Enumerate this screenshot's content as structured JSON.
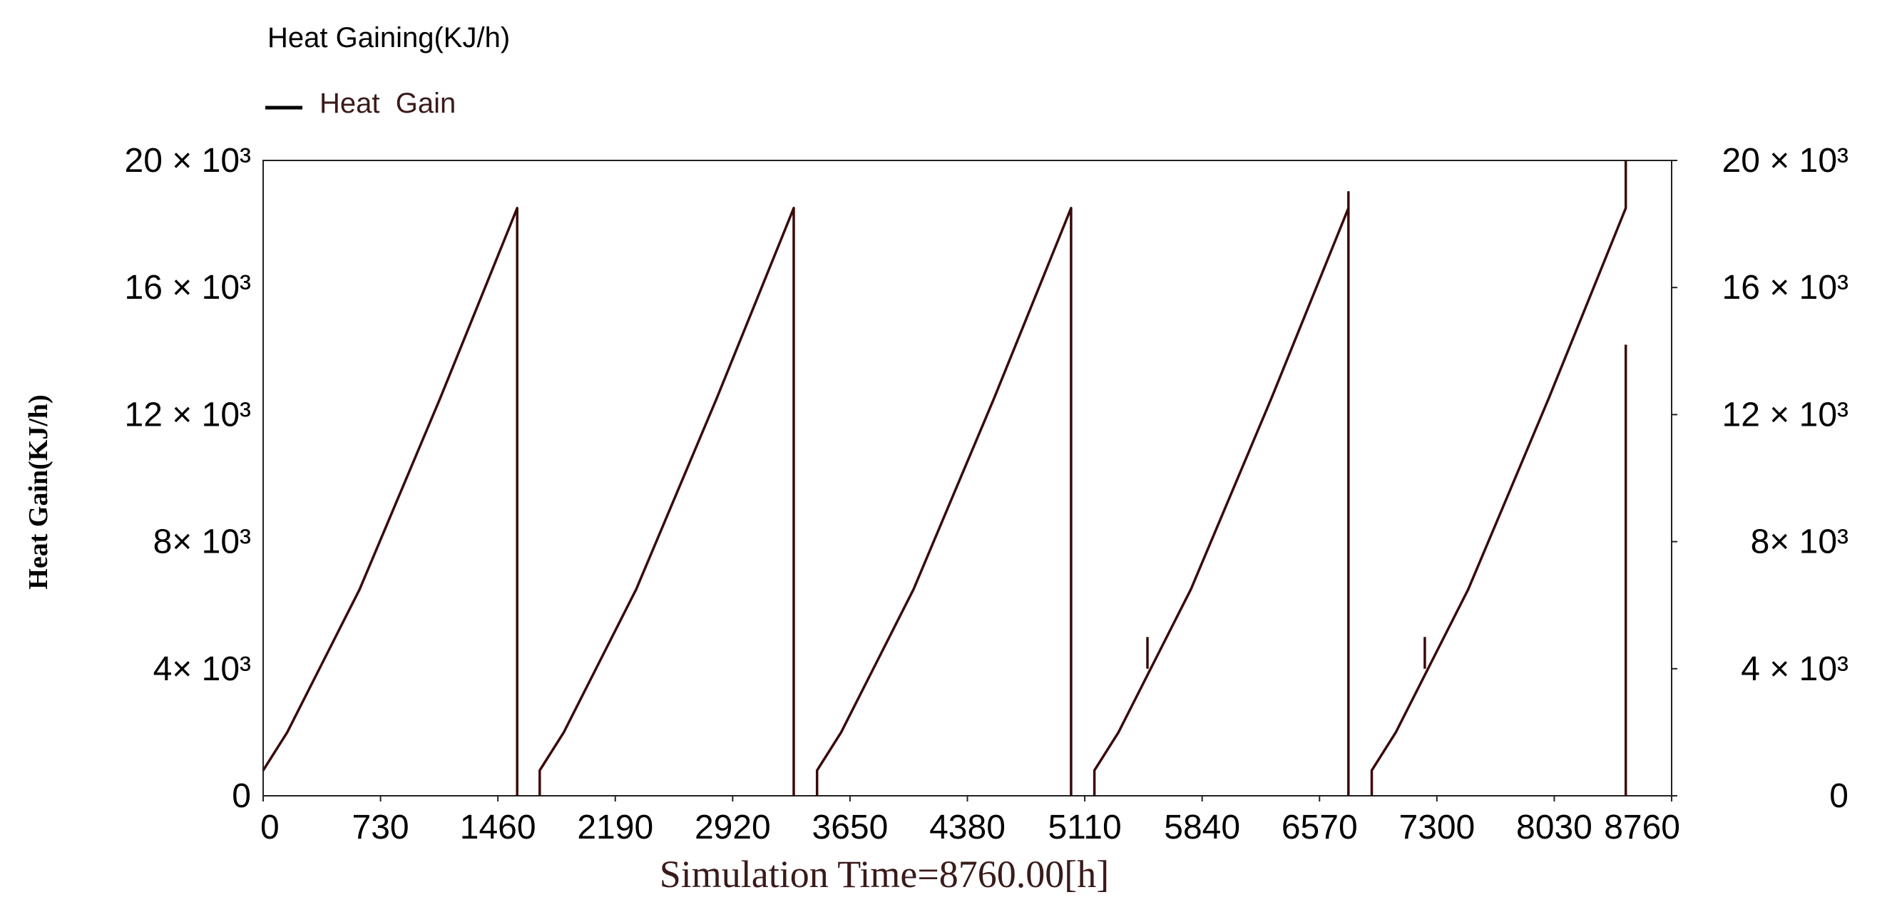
{
  "chart_data": {
    "type": "line",
    "title": "Heat Gaining(KJ/h)",
    "legend": [
      {
        "name": "Heat  Gain",
        "color": "#000000"
      }
    ],
    "xlabel": "Simulation Time=8760.00[h]",
    "ylabel": "Heat Gain(KJ/h)",
    "xlim": [
      0,
      8760
    ],
    "ylim": [
      0,
      20000
    ],
    "x_ticks": [
      "0",
      "730",
      "1460",
      "2190",
      "2920",
      "3650",
      "4380",
      "5110",
      "5840",
      "6570",
      "7300",
      "8030",
      "8760"
    ],
    "y_ticks_left": [
      "0",
      "4× 10³",
      "8× 10³",
      "12 × 10³",
      "16 × 10³",
      "20 × 10³"
    ],
    "y_ticks_right": [
      "0",
      "4 × 10³",
      "8× 10³",
      "12 × 10³",
      "16 × 10³",
      "20 × 10³"
    ],
    "y_tick_values": [
      0,
      4000,
      8000,
      12000,
      16000,
      20000
    ],
    "line_color": "#3a0a0a",
    "series": [
      {
        "name": "Heat  Gain",
        "segments": [
          [
            [
              0,
              800
            ],
            [
              150,
              2000
            ],
            [
              400,
              4500
            ],
            [
              600,
              6500
            ],
            [
              850,
              9500
            ],
            [
              1100,
              12500
            ],
            [
              1300,
              15000
            ],
            [
              1500,
              17500
            ],
            [
              1580,
              18500
            ],
            [
              1580,
              0
            ]
          ],
          [
            [
              1720,
              0
            ],
            [
              1720,
              800
            ],
            [
              1870,
              2000
            ],
            [
              2120,
              4500
            ],
            [
              2320,
              6500
            ],
            [
              2570,
              9500
            ],
            [
              2820,
              12500
            ],
            [
              3020,
              15000
            ],
            [
              3220,
              17500
            ],
            [
              3300,
              18500
            ],
            [
              3300,
              0
            ]
          ],
          [
            [
              3445,
              0
            ],
            [
              3445,
              800
            ],
            [
              3595,
              2000
            ],
            [
              3845,
              4500
            ],
            [
              4045,
              6500
            ],
            [
              4295,
              9500
            ],
            [
              4545,
              12500
            ],
            [
              4745,
              15000
            ],
            [
              4945,
              17500
            ],
            [
              5025,
              18500
            ],
            [
              5025,
              0
            ]
          ],
          [
            [
              5170,
              0
            ],
            [
              5170,
              800
            ],
            [
              5320,
              2000
            ],
            [
              5570,
              4500
            ],
            [
              5770,
              6500
            ],
            [
              6020,
              9500
            ],
            [
              6270,
              12500
            ],
            [
              6470,
              15000
            ],
            [
              6670,
              17500
            ],
            [
              6750,
              18500
            ],
            [
              6750,
              19000
            ],
            [
              6750,
              0
            ]
          ],
          [
            [
              6895,
              0
            ],
            [
              6895,
              800
            ],
            [
              7045,
              2000
            ],
            [
              7295,
              4500
            ],
            [
              7495,
              6500
            ],
            [
              7745,
              9500
            ],
            [
              7995,
              12500
            ],
            [
              8195,
              15000
            ],
            [
              8395,
              17500
            ],
            [
              8475,
              18500
            ],
            [
              8475,
              20000
            ]
          ],
          [
            [
              8475,
              0
            ],
            [
              8475,
              14200
            ]
          ],
          [
            [
              5500,
              4000
            ],
            [
              5500,
              5000
            ]
          ],
          [
            [
              7225,
              4000
            ],
            [
              7225,
              5000
            ]
          ]
        ]
      }
    ]
  }
}
